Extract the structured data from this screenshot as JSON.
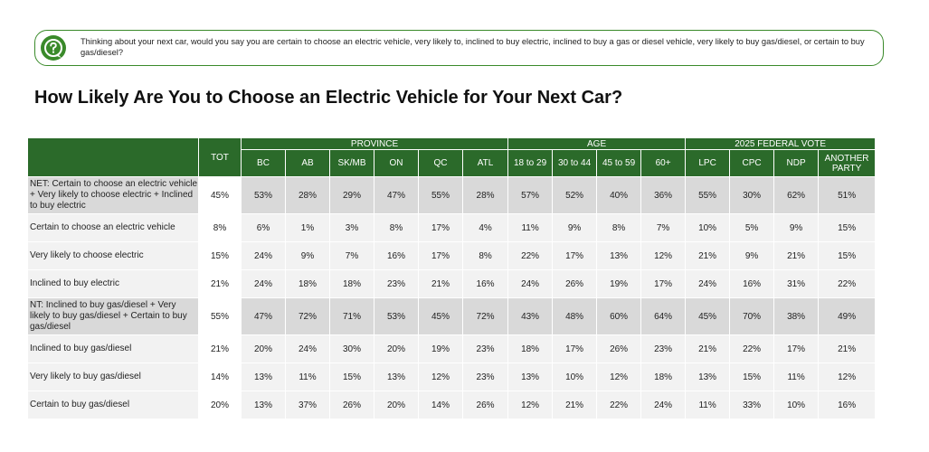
{
  "question": {
    "icon": "question-mark-icon",
    "text": "Thinking about your next car, would you say you are certain to choose an electric vehicle, very likely to, inclined to buy electric, inclined to buy a gas or diesel vehicle, very likely to buy gas/diesel, or certain to buy gas/diesel?"
  },
  "title": "How Likely Are You to Choose an Electric Vehicle for Your Next Car?",
  "colors": {
    "header_bg": "#2b6a2a",
    "border_green": "#3a8a2a",
    "positive": "#2e8b2e",
    "negative": "#e02020",
    "net_row_bg": "#d9d9d9",
    "row_bg": "#f2f2f2"
  },
  "chart_data": {
    "type": "table",
    "title": "How Likely Are You to Choose an Electric Vehicle for Your Next Car?",
    "column_groups": [
      {
        "label": "",
        "span": 1
      },
      {
        "label": "PROVINCE",
        "span": 6
      },
      {
        "label": "AGE",
        "span": 4
      },
      {
        "label": "2025 FEDERAL VOTE",
        "span": 4
      }
    ],
    "columns": [
      "TOT",
      "BC",
      "AB",
      "SK/MB",
      "ON",
      "QC",
      "ATL",
      "18 to 29",
      "30 to 44",
      "45 to 59",
      "60+",
      "LPC",
      "CPC",
      "NDP",
      "ANOTHER PARTY"
    ],
    "rows": [
      {
        "label": "NET: Certain to choose an electric vehicle + Very likely to choose electric + Inclined to buy electric",
        "net": true,
        "values": [
          "45%",
          "53%",
          "28%",
          "29%",
          "47%",
          "55%",
          "28%",
          "57%",
          "52%",
          "40%",
          "36%",
          "55%",
          "30%",
          "62%",
          "51%"
        ],
        "colors": [
          "n",
          "g",
          "r",
          "r",
          "n",
          "g",
          "r",
          "g",
          "g",
          "r",
          "r",
          "g",
          "r",
          "g",
          "n"
        ]
      },
      {
        "label": "Certain to choose an electric vehicle",
        "net": false,
        "values": [
          "8%",
          "6%",
          "1%",
          "3%",
          "8%",
          "17%",
          "4%",
          "11%",
          "9%",
          "8%",
          "7%",
          "10%",
          "5%",
          "9%",
          "15%"
        ],
        "colors": [
          "n",
          "n",
          "r",
          "n",
          "n",
          "g",
          "n",
          "n",
          "n",
          "n",
          "n",
          "g",
          "r",
          "n",
          "g"
        ]
      },
      {
        "label": "Very likely to choose electric",
        "net": false,
        "values": [
          "15%",
          "24%",
          "9%",
          "7%",
          "16%",
          "17%",
          "8%",
          "22%",
          "17%",
          "13%",
          "12%",
          "21%",
          "9%",
          "21%",
          "15%"
        ],
        "colors": [
          "n",
          "g",
          "r",
          "r",
          "n",
          "n",
          "n",
          "g",
          "n",
          "n",
          "r",
          "g",
          "r",
          "n",
          "n"
        ]
      },
      {
        "label": "Inclined to buy electric",
        "net": false,
        "values": [
          "21%",
          "24%",
          "18%",
          "18%",
          "23%",
          "21%",
          "16%",
          "24%",
          "26%",
          "19%",
          "17%",
          "24%",
          "16%",
          "31%",
          "22%"
        ],
        "colors": [
          "n",
          "n",
          "n",
          "n",
          "n",
          "n",
          "n",
          "n",
          "g",
          "n",
          "r",
          "g",
          "r",
          "g",
          "n"
        ]
      },
      {
        "label": "NT: Inclined to buy gas/diesel + Very likely to buy gas/diesel + Certain to buy gas/diesel",
        "net": true,
        "values": [
          "55%",
          "47%",
          "72%",
          "71%",
          "53%",
          "45%",
          "72%",
          "43%",
          "48%",
          "60%",
          "64%",
          "45%",
          "70%",
          "38%",
          "49%"
        ],
        "colors": [
          "n",
          "r",
          "g",
          "g",
          "n",
          "r",
          "g",
          "r",
          "r",
          "g",
          "g",
          "r",
          "g",
          "r",
          "n"
        ]
      },
      {
        "label": "Inclined to buy gas/diesel",
        "net": false,
        "values": [
          "21%",
          "20%",
          "24%",
          "30%",
          "20%",
          "19%",
          "23%",
          "18%",
          "17%",
          "26%",
          "23%",
          "21%",
          "22%",
          "17%",
          "21%"
        ],
        "colors": [
          "n",
          "n",
          "n",
          "n",
          "n",
          "n",
          "n",
          "n",
          "r",
          "g",
          "n",
          "n",
          "n",
          "n",
          "n"
        ]
      },
      {
        "label": "Very likely to buy gas/diesel",
        "net": false,
        "values": [
          "14%",
          "13%",
          "11%",
          "15%",
          "13%",
          "12%",
          "23%",
          "13%",
          "10%",
          "12%",
          "18%",
          "13%",
          "15%",
          "11%",
          "12%"
        ],
        "colors": [
          "n",
          "n",
          "n",
          "n",
          "n",
          "n",
          "n",
          "n",
          "n",
          "n",
          "g",
          "n",
          "n",
          "n",
          "n"
        ]
      },
      {
        "label": "Certain to buy gas/diesel",
        "net": false,
        "values": [
          "20%",
          "13%",
          "37%",
          "26%",
          "20%",
          "14%",
          "26%",
          "12%",
          "21%",
          "22%",
          "24%",
          "11%",
          "33%",
          "10%",
          "16%"
        ],
        "colors": [
          "n",
          "r",
          "g",
          "n",
          "n",
          "r",
          "n",
          "r",
          "n",
          "n",
          "n",
          "r",
          "g",
          "r",
          "n"
        ]
      }
    ]
  }
}
